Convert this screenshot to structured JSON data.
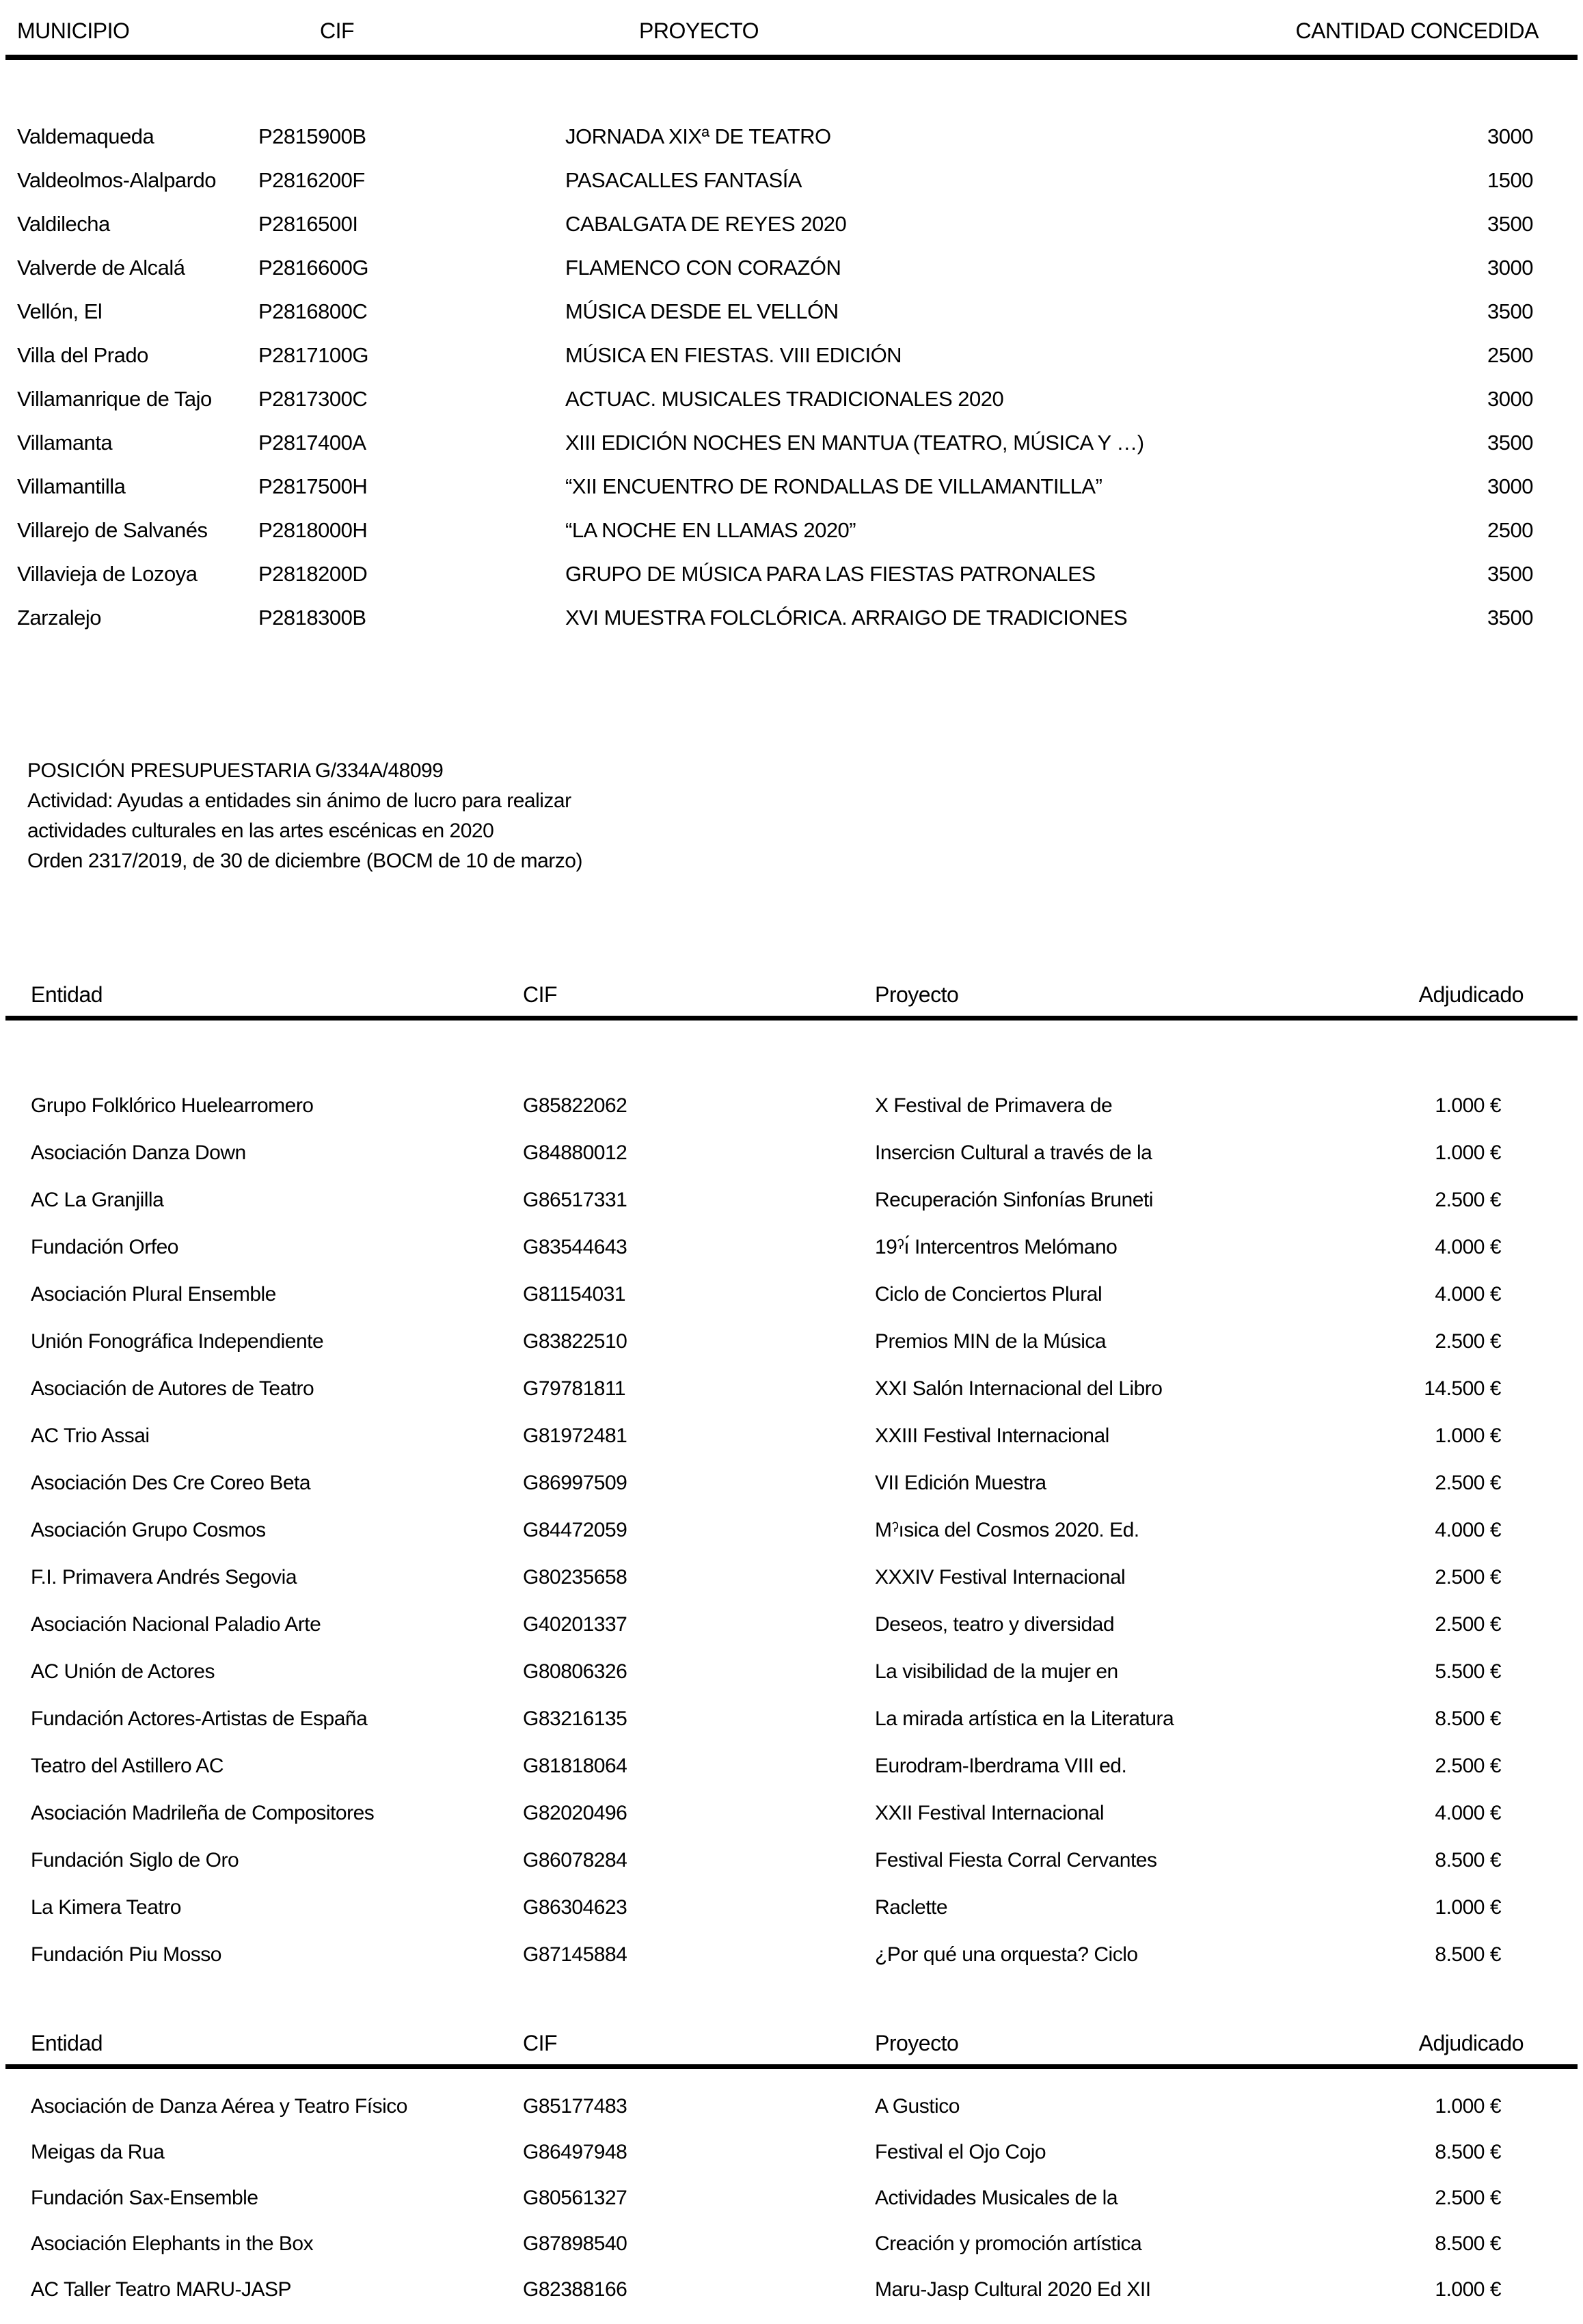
{
  "colors": {
    "background": "#ffffff",
    "text": "#000000",
    "rule": "#000000"
  },
  "table1": {
    "headers": {
      "municipio": "MUNICIPIO",
      "cif": "CIF",
      "proyecto": "PROYECTO",
      "cantidad": "CANTIDAD CONCEDIDA"
    },
    "rows": [
      {
        "municipio": "Valdemaqueda",
        "cif": "P2815900B",
        "proyecto": "JORNADA XIXª DE TEATRO",
        "cantidad": "3000"
      },
      {
        "municipio": "Valdeolmos-Alalpardo",
        "cif": "P2816200F",
        "proyecto": "PASACALLES FANTASÍA",
        "cantidad": "1500"
      },
      {
        "municipio": "Valdilecha",
        "cif": "P2816500I",
        "proyecto": "CABALGATA DE REYES 2020",
        "cantidad": "3500"
      },
      {
        "municipio": "Valverde de Alcalá",
        "cif": "P2816600G",
        "proyecto": "FLAMENCO CON CORAZÓN",
        "cantidad": "3000"
      },
      {
        "municipio": "Vellón, El",
        "cif": "P2816800C",
        "proyecto": "MÚSICA DESDE EL VELLÓN",
        "cantidad": "3500"
      },
      {
        "municipio": "Villa del Prado",
        "cif": "P2817100G",
        "proyecto": "MÚSICA EN FIESTAS. VIII EDICIÓN",
        "cantidad": "2500"
      },
      {
        "municipio": "Villamanrique de Tajo",
        "cif": "P2817300C",
        "proyecto": "ACTUAC. MUSICALES TRADICIONALES 2020",
        "cantidad": "3000"
      },
      {
        "municipio": "Villamanta",
        "cif": "P2817400A",
        "proyecto": "XIII EDICIÓN NOCHES EN MANTUA (TEATRO, MÚSICA Y …)",
        "cantidad": "3500"
      },
      {
        "municipio": "Villamantilla",
        "cif": "P2817500H",
        "proyecto": "“XII ENCUENTRO DE RONDALLAS DE VILLAMANTILLA”",
        "cantidad": "3000"
      },
      {
        "municipio": "Villarejo de Salvanés",
        "cif": "P2818000H",
        "proyecto": "“LA NOCHE EN LLAMAS 2020”",
        "cantidad": "2500"
      },
      {
        "municipio": "Villavieja de Lozoya",
        "cif": "P2818200D",
        "proyecto": "GRUPO DE MÚSICA PARA LAS FIESTAS PATRONALES",
        "cantidad": "3500"
      },
      {
        "municipio": "Zarzalejo",
        "cif": "P2818300B",
        "proyecto": "XVI MUESTRA FOLCLÓRICA. ARRAIGO DE TRADICIONES",
        "cantidad": "3500"
      }
    ]
  },
  "note": {
    "line1": "POSICIÓN PRESUPUESTARIA G/334A/48099",
    "line2": "Actividad: Ayudas a entidades sin ánimo de lucro para realizar",
    "line3": "actividades culturales en las artes escénicas en 2020",
    "line4": "Orden 2317/2019, de 30 de diciembre (BOCM de 10 de marzo)"
  },
  "table2": {
    "headers": {
      "entidad": "Entidad",
      "cif": "CIF",
      "proyecto": "Proyecto",
      "adjudicado": "Adjudicado"
    },
    "rows": [
      {
        "entidad": "Grupo Folklórico Huelearromero",
        "cif": "G85822062",
        "proyecto": "X Festival de Primavera de",
        "adjudicado": "1.000 €"
      },
      {
        "entidad": "Asociación Danza Down",
        "cif": "G84880012",
        "proyecto": "Inserciϭn Cultural a través de la",
        "adjudicado": "1.000 €"
      },
      {
        "entidad": "AC La Granjilla",
        "cif": "G86517331",
        "proyecto": "Recuperación Sinfonías Bruneti",
        "adjudicado": "2.500 €"
      },
      {
        "entidad": "Fundación Orfeo",
        "cif": "G83544643",
        "proyecto": "19ˀı́ Intercentros Melómano",
        "adjudicado": "4.000 €"
      },
      {
        "entidad": "Asociación Plural Ensemble",
        "cif": "G81154031",
        "proyecto": "Ciclo de Conciertos Plural",
        "adjudicado": "4.000 €"
      },
      {
        "entidad": "Unión Fonográfica Independiente",
        "cif": "G83822510",
        "proyecto": "Premios MIN de la Música",
        "adjudicado": "2.500 €"
      },
      {
        "entidad": "Asociación de Autores de Teatro",
        "cif": "G79781811",
        "proyecto": "XXI Salón Internacional del Libro",
        "adjudicado": "14.500 €"
      },
      {
        "entidad": "AC Trio Assai",
        "cif": "G81972481",
        "proyecto": "XXIII Festival Internacional",
        "adjudicado": "1.000 €"
      },
      {
        "entidad": "Asociación Des Cre Coreo Beta",
        "cif": "G86997509",
        "proyecto": "VII Edición Muestra",
        "adjudicado": "2.500 €"
      },
      {
        "entidad": "Asociación Grupo Cosmos",
        "cif": "G84472059",
        "proyecto": "Mˀısica del Cosmos 2020. Ed.",
        "adjudicado": "4.000 €"
      },
      {
        "entidad": "F.I. Primavera Andrés Segovia",
        "cif": "G80235658",
        "proyecto": "XXXIV Festival Internacional",
        "adjudicado": "2.500 €"
      },
      {
        "entidad": "Asociación Nacional Paladio Arte",
        "cif": "G40201337",
        "proyecto": "Deseos, teatro y diversidad",
        "adjudicado": "2.500 €"
      },
      {
        "entidad": "AC Unión de Actores",
        "cif": "G80806326",
        "proyecto": "La visibilidad de la mujer en",
        "adjudicado": "5.500 €"
      },
      {
        "entidad": "Fundación Actores-Artistas de España",
        "cif": "G83216135",
        "proyecto": "La mirada artística en la Literatura",
        "adjudicado": "8.500 €"
      },
      {
        "entidad": "Teatro del Astillero AC",
        "cif": "G81818064",
        "proyecto": "Eurodram-Iberdrama VIII ed.",
        "adjudicado": "2.500 €"
      },
      {
        "entidad": "Asociación Madrileña de Compositores",
        "cif": "G82020496",
        "proyecto": "XXII Festival Internacional",
        "adjudicado": "4.000 €"
      },
      {
        "entidad": "Fundación Siglo de Oro",
        "cif": "G86078284",
        "proyecto": "Festival Fiesta Corral Cervantes",
        "adjudicado": "8.500 €"
      },
      {
        "entidad": "La Kimera Teatro",
        "cif": "G86304623",
        "proyecto": "Raclette",
        "adjudicado": "1.000 €"
      },
      {
        "entidad": "Fundación Piu Mosso",
        "cif": "G87145884",
        "proyecto": "¿Por qué una orquesta? Ciclo",
        "adjudicado": "8.500 €"
      }
    ]
  },
  "table3": {
    "headers": {
      "entidad": "Entidad",
      "cif": "CIF",
      "proyecto": "Proyecto",
      "adjudicado": "Adjudicado"
    },
    "rows": [
      {
        "entidad": "Asociación de Danza Aérea y Teatro Físico",
        "cif": "G85177483",
        "proyecto": "A Gustico",
        "adjudicado": "1.000 €"
      },
      {
        "entidad": "Meigas da Rua",
        "cif": "G86497948",
        "proyecto": "Festival el Ojo Cojo",
        "adjudicado": "8.500 €"
      },
      {
        "entidad": "Fundación Sax-Ensemble",
        "cif": "G80561327",
        "proyecto": "Actividades Musicales de la",
        "adjudicado": "2.500 €"
      },
      {
        "entidad": "Asociación Elephants in the Box",
        "cif": "G87898540",
        "proyecto": "Creación y promoción artística",
        "adjudicado": "8.500 €"
      },
      {
        "entidad": "AC Taller Teatro MARU-JASP",
        "cif": "G82388166",
        "proyecto": "Maru-Jasp Cultural 2020 Ed XII",
        "adjudicado": "1.000 €"
      }
    ]
  }
}
